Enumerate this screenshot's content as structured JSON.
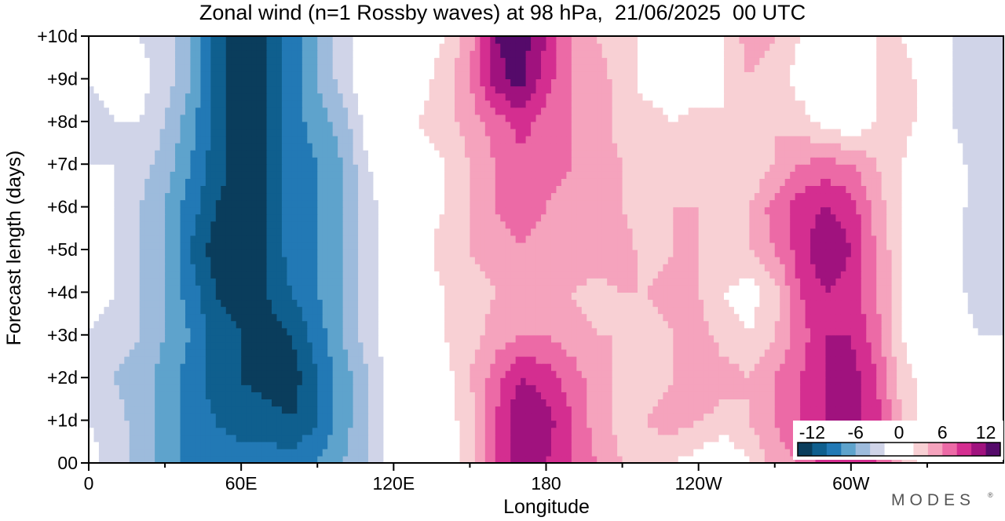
{
  "chart_data": {
    "type": "heatmap",
    "title": "Zonal wind (n=1 Rossby waves) at 98 hPa,  21/06/2025  00 UTC",
    "xlabel": "Longitude",
    "ylabel": "Forecast length (days)",
    "x_ticks": [
      {
        "lon": 0,
        "label": "0"
      },
      {
        "lon": 60,
        "label": "60E"
      },
      {
        "lon": 120,
        "label": "120E"
      },
      {
        "lon": 180,
        "label": "180"
      },
      {
        "lon": 240,
        "label": "120W"
      },
      {
        "lon": 300,
        "label": "60W"
      }
    ],
    "x_minor_ticks": [
      30,
      90,
      150,
      210,
      270,
      330
    ],
    "xlim": [
      0,
      360
    ],
    "y_ticks": [
      {
        "day": 0,
        "label": "00"
      },
      {
        "day": 1,
        "label": "+1d"
      },
      {
        "day": 2,
        "label": "+2d"
      },
      {
        "day": 3,
        "label": "+3d"
      },
      {
        "day": 4,
        "label": "+4d"
      },
      {
        "day": 5,
        "label": "+5d"
      },
      {
        "day": 6,
        "label": "+6d"
      },
      {
        "day": 7,
        "label": "+7d"
      },
      {
        "day": 8,
        "label": "+8d"
      },
      {
        "day": 9,
        "label": "+9d"
      },
      {
        "day": 10,
        "label": "+10d"
      }
    ],
    "ylim": [
      0,
      10
    ],
    "colorbar": {
      "colors": [
        "#0a3d5c",
        "#0f5f8e",
        "#2279b5",
        "#5ea3cc",
        "#9dbbdc",
        "#d0d4e8",
        "#ffffff",
        "#ffffff",
        "#f8d0d4",
        "#f5a3bd",
        "#ec6aa6",
        "#d42e90",
        "#a0127e",
        "#550a6a"
      ],
      "labels": [
        {
          "value": -12,
          "label": "-12"
        },
        {
          "value": -6,
          "label": "-6"
        },
        {
          "value": 0,
          "label": "0"
        },
        {
          "value": 6,
          "label": "6"
        },
        {
          "value": 12,
          "label": "12"
        }
      ],
      "range": [
        -14,
        14
      ],
      "step": 2
    },
    "rows_days": [
      0,
      1,
      2,
      3,
      4,
      5,
      6,
      7,
      8,
      9,
      10
    ],
    "anchors_lon": [
      0,
      10,
      20,
      30,
      40,
      50,
      60,
      70,
      80,
      90,
      100,
      110,
      120,
      130,
      140,
      150,
      160,
      170,
      180,
      190,
      200,
      210,
      220,
      230,
      240,
      250,
      260,
      270,
      280,
      290,
      300,
      310,
      320,
      330,
      340,
      350,
      360
    ],
    "values": [
      [
        -1,
        -3,
        -5,
        -7,
        -9,
        -9,
        -9,
        -9,
        -9,
        -8,
        -6,
        -4,
        -1,
        0,
        0,
        3,
        8,
        11,
        10,
        8,
        6,
        4,
        3,
        2,
        1,
        0,
        2,
        5,
        6,
        9,
        10,
        8,
        4,
        1,
        0,
        -1,
        -1
      ],
      [
        -2,
        -3,
        -5,
        -7,
        -9,
        -10,
        -11,
        -11,
        -12,
        -10,
        -7,
        -4,
        -1,
        0,
        1,
        3,
        8,
        12,
        11,
        8,
        5,
        3,
        4,
        5,
        4,
        3,
        4,
        6,
        8,
        10,
        11,
        9,
        4,
        1,
        0,
        -1,
        -2
      ],
      [
        -2,
        -4,
        -5,
        -7,
        -9,
        -11,
        -12,
        -13,
        -13,
        -10,
        -7,
        -4,
        -1,
        0,
        1,
        4,
        7,
        10,
        9,
        7,
        5,
        3,
        3,
        4,
        6,
        5,
        4,
        6,
        8,
        10,
        11,
        8,
        3,
        1,
        0,
        -1,
        -2
      ],
      [
        -2,
        -3,
        -4,
        -6,
        -8,
        -11,
        -12,
        -13,
        -12,
        -9,
        -6,
        -3,
        0,
        1,
        2,
        3,
        5,
        6,
        6,
        5,
        4,
        4,
        3,
        4,
        5,
        3,
        2,
        4,
        7,
        10,
        10,
        7,
        2,
        0,
        -1,
        -2,
        -2
      ],
      [
        -1,
        -2,
        -4,
        -6,
        -9,
        -12,
        -13,
        -12,
        -10,
        -8,
        -6,
        -3,
        0,
        1,
        2,
        3,
        4,
        4,
        4,
        4,
        3,
        4,
        4,
        5,
        4,
        2,
        1,
        3,
        8,
        10,
        9,
        6,
        2,
        0,
        -1,
        -3,
        -2
      ],
      [
        -1,
        -2,
        -4,
        -6,
        -10,
        -13,
        -13,
        -12,
        -9,
        -8,
        -6,
        -3,
        0,
        1,
        3,
        4,
        5,
        6,
        5,
        6,
        6,
        5,
        3,
        4,
        4,
        3,
        4,
        6,
        9,
        12,
        10,
        6,
        2,
        0,
        -1,
        -4,
        -3
      ],
      [
        -1,
        -2,
        -4,
        -6,
        -9,
        -12,
        -13,
        -12,
        -9,
        -8,
        -6,
        -3,
        0,
        1,
        2,
        4,
        6,
        7,
        6,
        5,
        4,
        4,
        3,
        4,
        4,
        4,
        4,
        7,
        9,
        10,
        9,
        5,
        2,
        0,
        -1,
        -3,
        -2
      ],
      [
        -2,
        -2,
        -3,
        -5,
        -8,
        -11,
        -13,
        -12,
        -9,
        -8,
        -6,
        -2,
        0,
        1,
        2,
        4,
        6,
        7,
        7,
        6,
        5,
        4,
        4,
        4,
        3,
        3,
        2,
        4,
        6,
        7,
        6,
        4,
        2,
        0,
        -1,
        -3,
        -2
      ],
      [
        -3,
        -2,
        -2,
        -4,
        -7,
        -11,
        -13,
        -12,
        -9,
        -7,
        -5,
        -1,
        1,
        2,
        3,
        5,
        7,
        9,
        7,
        6,
        5,
        3,
        3,
        2,
        3,
        2,
        3,
        4,
        3,
        1,
        0,
        2,
        3,
        1,
        -2,
        -3,
        -2
      ],
      [
        -2,
        -1,
        -1,
        -3,
        -6,
        -11,
        -13,
        -12,
        -9,
        -6,
        -3,
        0,
        2,
        1,
        3,
        6,
        11,
        13,
        9,
        6,
        5,
        3,
        1,
        0,
        0,
        2,
        4,
        3,
        1,
        0,
        0,
        2,
        3,
        1,
        -2,
        -3,
        -2
      ],
      [
        -2,
        -2,
        -2,
        -3,
        -6,
        -11,
        -13,
        -12,
        -9,
        -6,
        -3,
        0,
        1,
        1,
        2,
        5,
        12,
        13,
        10,
        6,
        4,
        3,
        1,
        0,
        0,
        2,
        5,
        4,
        2,
        1,
        1,
        2,
        2,
        1,
        -2,
        -3,
        -2
      ]
    ]
  }
}
